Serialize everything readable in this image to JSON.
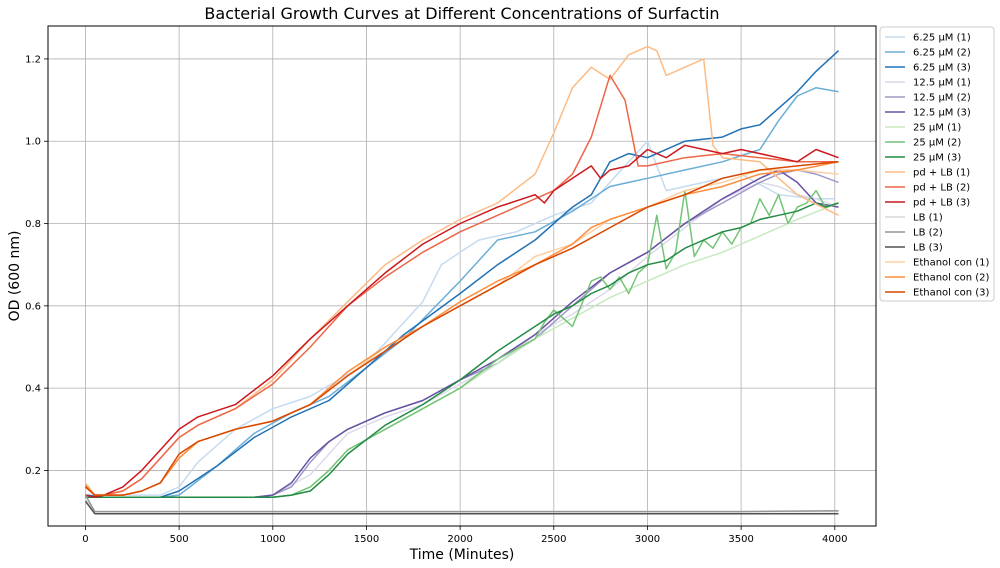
{
  "chart_data": {
    "type": "line",
    "title": "Bacterial Growth Curves at Different Concentrations of Surfactin",
    "xlabel": "Time (Minutes)",
    "ylabel": "OD (600 nm)",
    "xlim": [
      -200,
      4220
    ],
    "ylim": [
      0.065,
      1.28
    ],
    "xticks": [
      0,
      500,
      1000,
      1500,
      2000,
      2500,
      3000,
      3500,
      4000
    ],
    "yticks": [
      0.2,
      0.4,
      0.6,
      0.8,
      1.0,
      1.2
    ],
    "xtick_labels": [
      "0",
      "500",
      "1000",
      "1500",
      "2000",
      "2500",
      "3000",
      "3500",
      "4000"
    ],
    "ytick_labels": [
      "0.2",
      "0.4",
      "0.6",
      "0.8",
      "1.0",
      "1.2"
    ],
    "grid": true,
    "legend_position": "outside-top-right",
    "series": [
      {
        "name": "6.25 µM (1)",
        "color": "#c6dbef",
        "x": [
          0,
          100,
          300,
          400,
          500,
          600,
          800,
          1000,
          1200,
          1500,
          1800,
          1900,
          2000,
          2100,
          2300,
          2500,
          2700,
          2900,
          3000,
          3100,
          3300,
          3500,
          3700,
          3900,
          4000
        ],
        "y": [
          0.14,
          0.14,
          0.14,
          0.14,
          0.16,
          0.22,
          0.3,
          0.35,
          0.38,
          0.46,
          0.61,
          0.7,
          0.73,
          0.76,
          0.78,
          0.82,
          0.85,
          0.95,
          1.0,
          0.88,
          0.9,
          0.92,
          0.87,
          0.86,
          0.86
        ]
      },
      {
        "name": "6.25 µM (2)",
        "color": "#6baed6",
        "x": [
          0,
          100,
          300,
          400,
          500,
          700,
          900,
          1100,
          1300,
          1500,
          1700,
          2000,
          2200,
          2400,
          2600,
          2800,
          3000,
          3200,
          3400,
          3600,
          3700,
          3800,
          3900,
          4020
        ],
        "y": [
          0.14,
          0.135,
          0.135,
          0.135,
          0.14,
          0.21,
          0.29,
          0.34,
          0.38,
          0.45,
          0.52,
          0.66,
          0.76,
          0.78,
          0.83,
          0.89,
          0.91,
          0.93,
          0.95,
          0.98,
          1.05,
          1.11,
          1.13,
          1.12
        ]
      },
      {
        "name": "6.25 µM (3)",
        "color": "#2171b5",
        "x": [
          0,
          100,
          300,
          400,
          500,
          700,
          900,
          1100,
          1300,
          1500,
          1700,
          2000,
          2200,
          2400,
          2600,
          2700,
          2800,
          2900,
          3000,
          3200,
          3400,
          3500,
          3600,
          3700,
          3800,
          3900,
          4020
        ],
        "y": [
          0.14,
          0.135,
          0.135,
          0.135,
          0.15,
          0.21,
          0.28,
          0.33,
          0.37,
          0.45,
          0.53,
          0.63,
          0.7,
          0.76,
          0.84,
          0.87,
          0.95,
          0.97,
          0.96,
          1.0,
          1.01,
          1.03,
          1.04,
          1.08,
          1.12,
          1.17,
          1.22
        ]
      },
      {
        "name": "12.5 µM (1)",
        "color": "#dadaeb",
        "x": [
          0,
          100,
          500,
          900,
          1000,
          1200,
          1400,
          1600,
          1800,
          2000,
          2200,
          2400,
          2600,
          2800,
          3000,
          3200,
          3400,
          3600,
          3700,
          3800,
          3900,
          4020
        ],
        "y": [
          0.135,
          0.135,
          0.135,
          0.135,
          0.14,
          0.19,
          0.29,
          0.33,
          0.36,
          0.41,
          0.46,
          0.53,
          0.58,
          0.64,
          0.72,
          0.79,
          0.86,
          0.9,
          0.89,
          0.87,
          0.86,
          0.84
        ]
      },
      {
        "name": "12.5 µM (2)",
        "color": "#9e9ac8",
        "x": [
          0,
          100,
          500,
          900,
          1000,
          1100,
          1200,
          1300,
          1400,
          1600,
          1800,
          2000,
          2200,
          2400,
          2600,
          2800,
          3000,
          3200,
          3400,
          3600,
          3700,
          3800,
          3900,
          4020
        ],
        "y": [
          0.135,
          0.135,
          0.135,
          0.135,
          0.14,
          0.16,
          0.22,
          0.27,
          0.3,
          0.34,
          0.37,
          0.42,
          0.46,
          0.52,
          0.6,
          0.68,
          0.73,
          0.8,
          0.85,
          0.9,
          0.92,
          0.93,
          0.92,
          0.9
        ]
      },
      {
        "name": "12.5 µM (3)",
        "color": "#6a51a3",
        "x": [
          0,
          100,
          500,
          900,
          1000,
          1100,
          1200,
          1300,
          1400,
          1600,
          1800,
          2000,
          2200,
          2400,
          2600,
          2800,
          3000,
          3200,
          3400,
          3600,
          3700,
          3800,
          3900,
          4020
        ],
        "y": [
          0.135,
          0.135,
          0.135,
          0.135,
          0.14,
          0.17,
          0.23,
          0.27,
          0.3,
          0.34,
          0.37,
          0.42,
          0.47,
          0.53,
          0.61,
          0.68,
          0.73,
          0.8,
          0.86,
          0.91,
          0.93,
          0.9,
          0.85,
          0.84
        ]
      },
      {
        "name": "25 µM (1)",
        "color": "#c7e9c0",
        "x": [
          0,
          100,
          500,
          1000,
          1100,
          1200,
          1300,
          1400,
          1600,
          1800,
          2000,
          2200,
          2400,
          2600,
          2800,
          3000,
          3200,
          3400,
          3600,
          3800,
          4020
        ],
        "y": [
          0.135,
          0.135,
          0.135,
          0.135,
          0.14,
          0.16,
          0.2,
          0.25,
          0.3,
          0.35,
          0.4,
          0.46,
          0.52,
          0.57,
          0.62,
          0.66,
          0.7,
          0.73,
          0.77,
          0.81,
          0.85
        ]
      },
      {
        "name": "25 µM (2)",
        "color": "#74c476",
        "x": [
          0,
          100,
          500,
          1000,
          1100,
          1200,
          1300,
          1400,
          1600,
          1800,
          2000,
          2200,
          2400,
          2450,
          2500,
          2600,
          2700,
          2750,
          2800,
          2850,
          2900,
          2950,
          3000,
          3050,
          3100,
          3150,
          3200,
          3250,
          3300,
          3350,
          3400,
          3450,
          3500,
          3550,
          3600,
          3650,
          3700,
          3750,
          3800,
          3850,
          3900,
          3950,
          4020
        ],
        "y": [
          0.135,
          0.135,
          0.135,
          0.135,
          0.14,
          0.16,
          0.2,
          0.25,
          0.3,
          0.35,
          0.4,
          0.47,
          0.52,
          0.56,
          0.59,
          0.55,
          0.66,
          0.67,
          0.64,
          0.67,
          0.63,
          0.68,
          0.7,
          0.82,
          0.69,
          0.73,
          0.88,
          0.72,
          0.76,
          0.74,
          0.78,
          0.75,
          0.79,
          0.8,
          0.86,
          0.82,
          0.87,
          0.8,
          0.84,
          0.85,
          0.88,
          0.84,
          0.85
        ]
      },
      {
        "name": "25 µM (3)",
        "color": "#238b45",
        "x": [
          0,
          100,
          500,
          1000,
          1100,
          1200,
          1300,
          1400,
          1600,
          1800,
          2000,
          2200,
          2400,
          2500,
          2600,
          2700,
          2800,
          2900,
          3000,
          3100,
          3200,
          3300,
          3400,
          3500,
          3600,
          3700,
          3800,
          3900,
          3950,
          4020
        ],
        "y": [
          0.135,
          0.135,
          0.135,
          0.135,
          0.14,
          0.15,
          0.19,
          0.24,
          0.31,
          0.36,
          0.42,
          0.49,
          0.55,
          0.58,
          0.6,
          0.63,
          0.65,
          0.68,
          0.7,
          0.71,
          0.74,
          0.76,
          0.78,
          0.79,
          0.81,
          0.82,
          0.83,
          0.85,
          0.84,
          0.85
        ]
      },
      {
        "name": "pd + LB (1)",
        "color": "#fdbb84",
        "x": [
          0,
          50,
          100,
          200,
          300,
          400,
          500,
          600,
          800,
          1000,
          1200,
          1400,
          1600,
          1800,
          2000,
          2200,
          2400,
          2500,
          2600,
          2700,
          2800,
          2900,
          3000,
          3050,
          3100,
          3200,
          3300,
          3350,
          3400,
          3600,
          3800,
          4020
        ],
        "y": [
          0.165,
          0.14,
          0.14,
          0.15,
          0.18,
          0.23,
          0.28,
          0.31,
          0.35,
          0.42,
          0.52,
          0.61,
          0.7,
          0.76,
          0.81,
          0.85,
          0.92,
          1.02,
          1.13,
          1.18,
          1.15,
          1.21,
          1.23,
          1.22,
          1.16,
          1.18,
          1.2,
          0.99,
          0.96,
          0.95,
          0.87,
          0.82
        ]
      },
      {
        "name": "pd + LB (2)",
        "color": "#ef6548",
        "x": [
          0,
          50,
          100,
          200,
          300,
          400,
          500,
          600,
          800,
          1000,
          1200,
          1400,
          1600,
          1800,
          2000,
          2200,
          2400,
          2500,
          2600,
          2700,
          2800,
          2880,
          2950,
          3000,
          3200,
          3400,
          3600,
          3800,
          4020
        ],
        "y": [
          0.16,
          0.14,
          0.14,
          0.15,
          0.18,
          0.23,
          0.28,
          0.31,
          0.35,
          0.41,
          0.5,
          0.6,
          0.67,
          0.73,
          0.78,
          0.82,
          0.86,
          0.88,
          0.92,
          1.01,
          1.16,
          1.1,
          0.94,
          0.94,
          0.96,
          0.97,
          0.96,
          0.95,
          0.95
        ]
      },
      {
        "name": "pd + LB (3)",
        "color": "#cb181d",
        "x": [
          0,
          50,
          100,
          200,
          300,
          400,
          500,
          600,
          800,
          1000,
          1200,
          1400,
          1600,
          1800,
          2000,
          2200,
          2400,
          2450,
          2500,
          2600,
          2700,
          2750,
          2800,
          2900,
          3000,
          3100,
          3200,
          3300,
          3400,
          3500,
          3600,
          3700,
          3800,
          3900,
          4020
        ],
        "y": [
          0.14,
          0.135,
          0.14,
          0.16,
          0.2,
          0.25,
          0.3,
          0.33,
          0.36,
          0.43,
          0.52,
          0.6,
          0.68,
          0.75,
          0.8,
          0.84,
          0.87,
          0.85,
          0.88,
          0.91,
          0.94,
          0.91,
          0.93,
          0.94,
          0.98,
          0.96,
          0.99,
          0.98,
          0.97,
          0.98,
          0.97,
          0.96,
          0.95,
          0.98,
          0.96
        ]
      },
      {
        "name": "LB (1)",
        "color": "#d9d9d9",
        "x": [
          0,
          50,
          100,
          500,
          1000,
          2000,
          3000,
          4020
        ],
        "y": [
          0.13,
          0.1,
          0.1,
          0.1,
          0.1,
          0.1,
          0.1,
          0.1
        ]
      },
      {
        "name": "LB (2)",
        "color": "#969696",
        "x": [
          0,
          50,
          100,
          500,
          1000,
          2000,
          3000,
          3500,
          4020
        ],
        "y": [
          0.14,
          0.1,
          0.1,
          0.1,
          0.1,
          0.1,
          0.1,
          0.1,
          0.102
        ]
      },
      {
        "name": "LB (3)",
        "color": "#525252",
        "x": [
          0,
          50,
          100,
          500,
          1000,
          2000,
          3000,
          4020
        ],
        "y": [
          0.125,
          0.095,
          0.095,
          0.095,
          0.095,
          0.095,
          0.095,
          0.095
        ]
      },
      {
        "name": "Ethanol con (1)",
        "color": "#fdd0a2",
        "x": [
          0,
          50,
          100,
          200,
          300,
          400,
          500,
          600,
          800,
          1000,
          1200,
          1400,
          1600,
          1800,
          2000,
          2200,
          2400,
          2600,
          2800,
          3000,
          3200,
          3400,
          3600,
          3800,
          4020
        ],
        "y": [
          0.17,
          0.14,
          0.14,
          0.14,
          0.15,
          0.17,
          0.23,
          0.27,
          0.3,
          0.32,
          0.36,
          0.43,
          0.5,
          0.55,
          0.6,
          0.65,
          0.72,
          0.75,
          0.81,
          0.84,
          0.88,
          0.9,
          0.93,
          0.93,
          0.92
        ]
      },
      {
        "name": "Ethanol con (2)",
        "color": "#fd8d3c",
        "x": [
          0,
          50,
          100,
          200,
          300,
          400,
          500,
          600,
          800,
          1000,
          1200,
          1400,
          1600,
          1800,
          2000,
          2200,
          2400,
          2600,
          2700,
          2800,
          3000,
          3200,
          3400,
          3600,
          3800,
          4020
        ],
        "y": [
          0.165,
          0.14,
          0.14,
          0.14,
          0.15,
          0.17,
          0.23,
          0.27,
          0.3,
          0.32,
          0.36,
          0.44,
          0.5,
          0.55,
          0.61,
          0.66,
          0.7,
          0.75,
          0.79,
          0.81,
          0.84,
          0.87,
          0.89,
          0.92,
          0.93,
          0.95
        ]
      },
      {
        "name": "Ethanol con (3)",
        "color": "#d94801",
        "x": [
          0,
          50,
          100,
          200,
          300,
          400,
          500,
          600,
          800,
          1000,
          1200,
          1400,
          1600,
          1800,
          2000,
          2200,
          2400,
          2600,
          2800,
          3000,
          3200,
          3400,
          3600,
          3800,
          4020
        ],
        "y": [
          0.16,
          0.14,
          0.14,
          0.14,
          0.15,
          0.17,
          0.24,
          0.27,
          0.3,
          0.32,
          0.36,
          0.43,
          0.49,
          0.55,
          0.6,
          0.65,
          0.7,
          0.74,
          0.79,
          0.84,
          0.87,
          0.91,
          0.93,
          0.94,
          0.95
        ]
      }
    ]
  }
}
